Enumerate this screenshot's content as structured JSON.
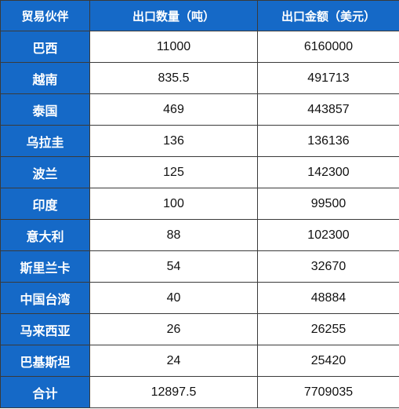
{
  "table": {
    "headers": [
      "贸易伙伴",
      "出口数量（吨）",
      "出口金额（美元）"
    ],
    "rows": [
      {
        "partner": "巴西",
        "quantity": "11000",
        "amount": "6160000"
      },
      {
        "partner": "越南",
        "quantity": "835.5",
        "amount": "491713"
      },
      {
        "partner": "泰国",
        "quantity": "469",
        "amount": "443857"
      },
      {
        "partner": "乌拉圭",
        "quantity": "136",
        "amount": "136136"
      },
      {
        "partner": "波兰",
        "quantity": "125",
        "amount": "142300"
      },
      {
        "partner": "印度",
        "quantity": "100",
        "amount": "99500"
      },
      {
        "partner": "意大利",
        "quantity": "88",
        "amount": "102300"
      },
      {
        "partner": "斯里兰卡",
        "quantity": "54",
        "amount": "32670"
      },
      {
        "partner": "中国台湾",
        "quantity": "40",
        "amount": "48884"
      },
      {
        "partner": "马来西亚",
        "quantity": "26",
        "amount": "26255"
      },
      {
        "partner": "巴基斯坦",
        "quantity": "24",
        "amount": "25420"
      },
      {
        "partner": "合计",
        "quantity": "12897.5",
        "amount": "7709035"
      }
    ]
  },
  "colors": {
    "header_bg": "#1569c7",
    "header_text": "#ffffff",
    "cell_bg": "#ffffff"
  }
}
